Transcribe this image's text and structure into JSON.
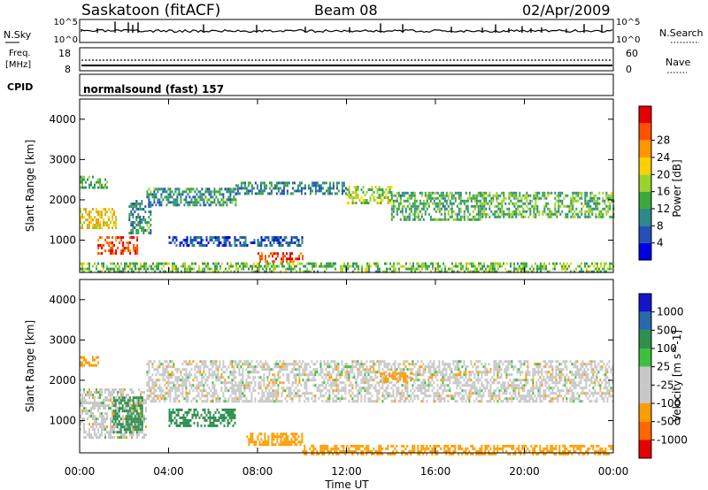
{
  "header": {
    "station": "Saskatoon (fitACF)",
    "beam": "Beam 08",
    "date": "02/Apr/2009"
  },
  "status_panels": {
    "nsky_label": "N.Sky",
    "nsky_ticks": [
      "10^5",
      "10^0"
    ],
    "nsearch_label": "N.Search",
    "nsearch_ticks": [
      "10^5",
      "10^0"
    ],
    "freq_label_line1": "Freq.",
    "freq_label_line2": "[MHz]",
    "freq_ticks": [
      "18",
      "8"
    ],
    "nave_label": "Nave",
    "nave_ticks": [
      "60",
      "0"
    ],
    "cpid_label": "CPID",
    "cpid_text": "normalsound (fast) 157"
  },
  "colors": {
    "power_scale": [
      "#0000e6",
      "#2450b4",
      "#2d8a8a",
      "#3ca83c",
      "#9cd22c",
      "#ffd000",
      "#ff9600",
      "#ff5000",
      "#e60000"
    ],
    "velocity_scale": [
      "#1414c8",
      "#2b6aa8",
      "#2f8f4f",
      "#3fbf3f",
      "#c8c8c8",
      "#c8c8c8",
      "#ff9d00",
      "#ff6600",
      "#e60000"
    ]
  },
  "chart_data": [
    {
      "type": "heatmap",
      "panel": "power",
      "ylabel": "Slant Range [km]",
      "yticks": [
        "1000",
        "2000",
        "3000",
        "4000"
      ],
      "ylim": [
        200,
        4500
      ],
      "xlim": [
        0,
        24
      ],
      "colorbar_label": "Power [dB]",
      "colorbar_ticks": [
        "4",
        "8",
        "12",
        "16",
        "20",
        "24",
        "28"
      ],
      "colorbar_range": [
        0,
        32
      ],
      "regions": [
        {
          "t": [
            0.0,
            1.6
          ],
          "r": [
            1300,
            1800
          ],
          "value": 20
        },
        {
          "t": [
            0.8,
            2.6
          ],
          "r": [
            650,
            1100
          ],
          "value": 28
        },
        {
          "t": [
            0.0,
            1.2
          ],
          "r": [
            2300,
            2600
          ],
          "value": 12
        },
        {
          "t": [
            2.2,
            3.2
          ],
          "r": [
            1200,
            2000
          ],
          "value": 10
        },
        {
          "t": [
            3.0,
            7.0
          ],
          "r": [
            1900,
            2300
          ],
          "value": 10
        },
        {
          "t": [
            7.0,
            12.0
          ],
          "r": [
            2150,
            2450
          ],
          "value": 9
        },
        {
          "t": [
            12.0,
            14.0
          ],
          "r": [
            1950,
            2350
          ],
          "value": 16
        },
        {
          "t": [
            14.0,
            18.0
          ],
          "r": [
            1500,
            2200
          ],
          "value": 12
        },
        {
          "t": [
            18.0,
            24.0
          ],
          "r": [
            1600,
            2200
          ],
          "value": 13
        },
        {
          "t": [
            8.0,
            10.0
          ],
          "r": [
            480,
            700
          ],
          "value": 28
        },
        {
          "t": [
            4.0,
            10.0
          ],
          "r": [
            900,
            1100
          ],
          "value": 6
        },
        {
          "t": [
            0.0,
            24.0
          ],
          "r": [
            200,
            450
          ],
          "value": 14
        }
      ]
    },
    {
      "type": "heatmap",
      "panel": "velocity",
      "ylabel": "Slant Range [km]",
      "yticks": [
        "1000",
        "2000",
        "3000",
        "4000"
      ],
      "ylim": [
        200,
        4500
      ],
      "xlim": [
        0,
        24
      ],
      "xticks": [
        "00:00",
        "04:00",
        "08:00",
        "12:00",
        "16:00",
        "20:00",
        "00:00"
      ],
      "xlabel": "Time UT",
      "colorbar_label": "Velocity [m s^-1]",
      "colorbar_ticks": [
        "1000",
        "500",
        "100",
        "25",
        "-25",
        "-100",
        "-500",
        "-1000"
      ],
      "regions": [
        {
          "t": [
            0.0,
            3.0
          ],
          "r": [
            600,
            1800
          ],
          "value": 0
        },
        {
          "t": [
            0.0,
            0.8
          ],
          "r": [
            2400,
            2600
          ],
          "value": -150
        },
        {
          "t": [
            1.5,
            2.8
          ],
          "r": [
            700,
            1600
          ],
          "value": 150
        },
        {
          "t": [
            3.0,
            24.0
          ],
          "r": [
            1500,
            2500
          ],
          "value": 0
        },
        {
          "t": [
            13.5,
            15.0
          ],
          "r": [
            2000,
            2200
          ],
          "value": -150
        },
        {
          "t": [
            7.5,
            10.0
          ],
          "r": [
            400,
            700
          ],
          "value": -80
        },
        {
          "t": [
            10.0,
            24.0
          ],
          "r": [
            200,
            400
          ],
          "value": -60
        },
        {
          "t": [
            4.0,
            7.0
          ],
          "r": [
            900,
            1300
          ],
          "value": 120
        }
      ]
    }
  ]
}
